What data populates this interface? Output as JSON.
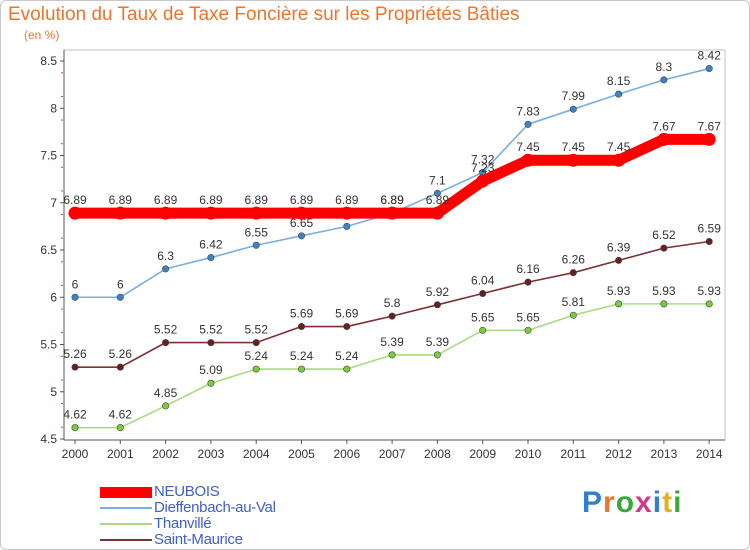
{
  "header": {
    "title": "Evolution du Taux de Taxe Foncière sur les Propriétés Bâties",
    "unit": "(en %)"
  },
  "logo": {
    "text": "Proxiti"
  },
  "chart_data": {
    "type": "line",
    "title": "Evolution du Taux de Taxe Foncière sur les Propriétés Bâties",
    "ylabel": "(en %)",
    "xlabel": "",
    "ylim": [
      4.5,
      8.5
    ],
    "yticks": [
      "4.5",
      "5",
      "5.5",
      "6",
      "6.5",
      "7",
      "7.5",
      "8",
      "8.5"
    ],
    "categories": [
      "2000",
      "2001",
      "2002",
      "2003",
      "2004",
      "2005",
      "2006",
      "2007",
      "2008",
      "2009",
      "2010",
      "2011",
      "2012",
      "2013",
      "2014"
    ],
    "legend_position": "bottom-left",
    "series": [
      {
        "name": "Dieffenbach-au-Val",
        "color": "#7aaedc",
        "marker": "#3d84c6",
        "values": [
          6,
          6,
          6.3,
          6.42,
          6.55,
          6.65,
          6.75,
          6.89,
          7.1,
          7.32,
          7.83,
          7.99,
          8.15,
          8.3,
          8.42
        ],
        "labels": [
          "6",
          "6",
          "6.3",
          "6.42",
          "6.55",
          "6.65",
          "6.75",
          "6.89",
          "7.1",
          "7.32",
          "7.83",
          "7.99",
          "8.15",
          "8.3",
          "8.42"
        ]
      },
      {
        "name": "Thanvillé",
        "color": "#a8dc80",
        "marker": "#7acc3c",
        "values": [
          4.62,
          4.62,
          4.85,
          5.09,
          5.24,
          5.24,
          5.24,
          5.39,
          5.39,
          5.65,
          5.65,
          5.81,
          5.93,
          5.93,
          5.93
        ],
        "labels": [
          "4.62",
          "4.62",
          "4.85",
          "5.09",
          "5.24",
          "5.24",
          "5.24",
          "5.39",
          "5.39",
          "5.65",
          "5.65",
          "5.81",
          "5.93",
          "5.93",
          "5.93"
        ]
      },
      {
        "name": "Saint-Maurice",
        "color": "#7a3232",
        "marker": "#6a1e1e",
        "values": [
          5.26,
          5.26,
          5.52,
          5.52,
          5.52,
          5.69,
          5.69,
          5.8,
          5.92,
          6.04,
          6.16,
          6.26,
          6.39,
          6.52,
          6.59
        ],
        "labels": [
          "5.26",
          "5.26",
          "5.52",
          "5.52",
          "5.52",
          "5.69",
          "5.69",
          "5.8",
          "5.92",
          "6.04",
          "6.16",
          "6.26",
          "6.39",
          "6.52",
          "6.59"
        ]
      },
      {
        "name": "NEUBOIS",
        "color": "#ff0000",
        "marker": "#ff0000",
        "values": [
          6.89,
          6.89,
          6.89,
          6.89,
          6.89,
          6.89,
          6.89,
          6.89,
          6.89,
          7.23,
          7.45,
          7.45,
          7.45,
          7.67,
          7.67
        ],
        "labels": [
          "6.89",
          "6.89",
          "6.89",
          "6.89",
          "6.89",
          "6.89",
          "6.89",
          "6.89",
          "6.89",
          "7.23",
          "7.45",
          "7.45",
          "7.45",
          "7.67",
          "7.67"
        ],
        "thick": true
      }
    ],
    "legend_order": [
      "NEUBOIS",
      "Dieffenbach-au-Val",
      "Thanvillé",
      "Saint-Maurice"
    ]
  }
}
